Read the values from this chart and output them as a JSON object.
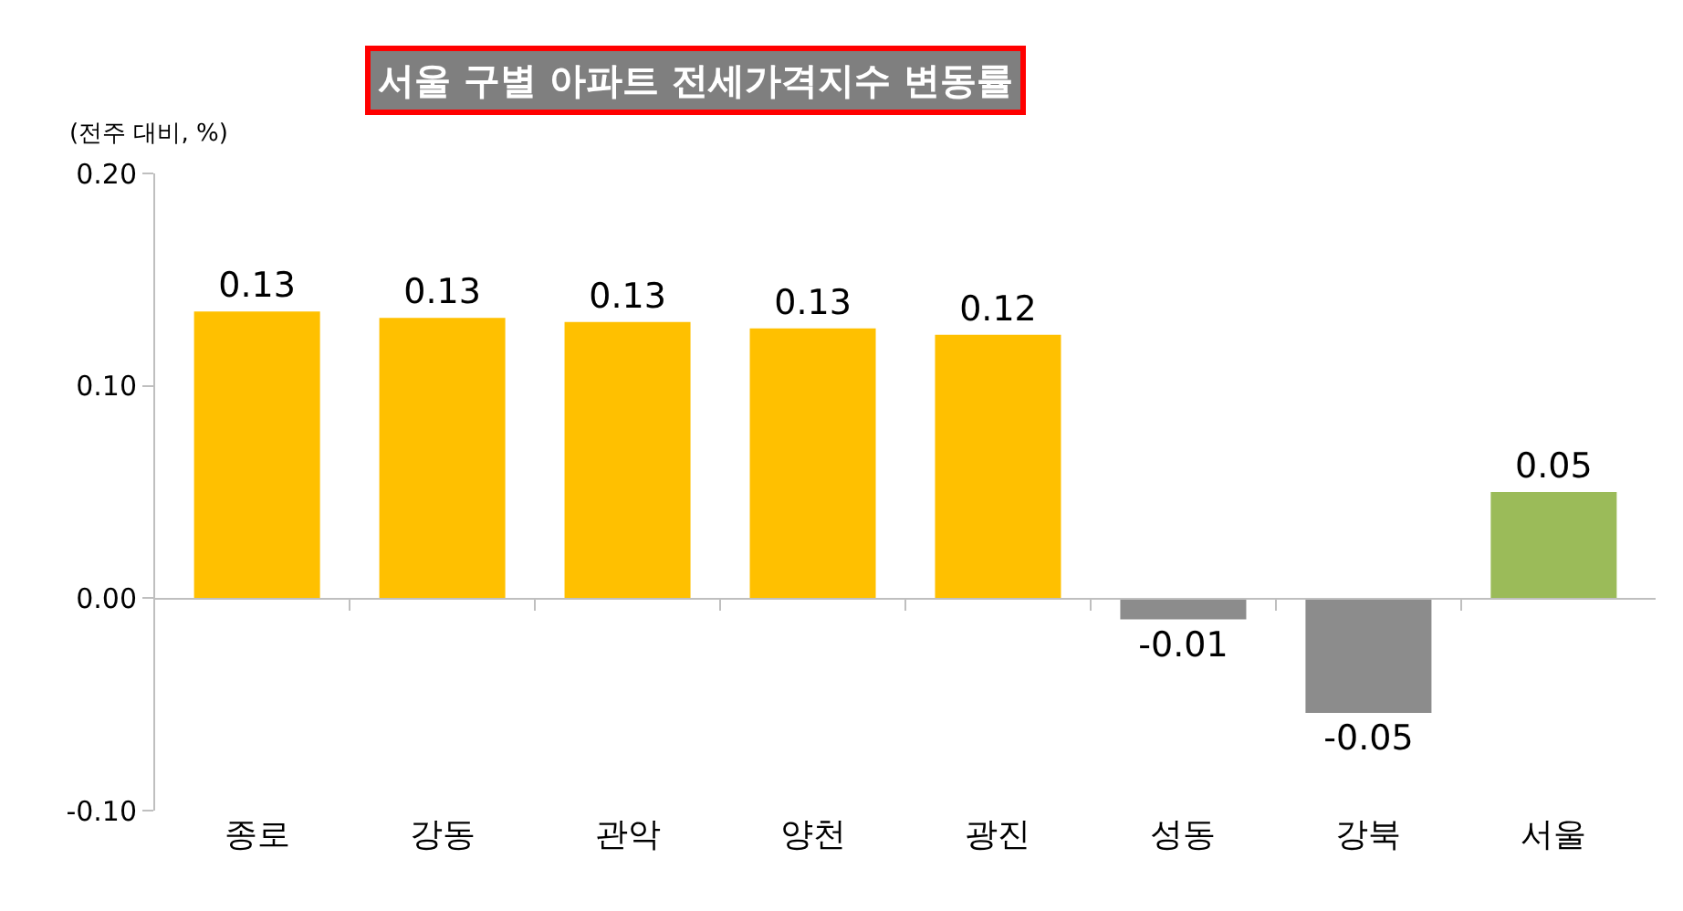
{
  "chart_data": {
    "type": "bar",
    "title": "서울 구별 아파트 전세가격지수 변동률",
    "ylabel": "(전주 대비, %)",
    "categories": [
      "종로",
      "강동",
      "관악",
      "양천",
      "광진",
      "성동",
      "강북",
      "서울"
    ],
    "values": [
      0.135,
      0.132,
      0.13,
      0.127,
      0.124,
      -0.01,
      -0.054,
      0.05
    ],
    "colors": [
      "#ffc000",
      "#ffc000",
      "#ffc000",
      "#ffc000",
      "#ffc000",
      "#8c8c8c",
      "#8c8c8c",
      "#9bbb59"
    ],
    "value_labels": [
      "0.13",
      "0.13",
      "0.13",
      "0.13",
      "0.12",
      "-0.01",
      "-0.05",
      "0.05"
    ],
    "ylim": [
      -0.1,
      0.2
    ],
    "yticks": [
      {
        "value": -0.1,
        "label": "-0.10"
      },
      {
        "value": 0,
        "label": "0.00"
      },
      {
        "value": 0.1,
        "label": "0.10"
      },
      {
        "value": 0.2,
        "label": "0.20"
      }
    ],
    "legend": false
  }
}
